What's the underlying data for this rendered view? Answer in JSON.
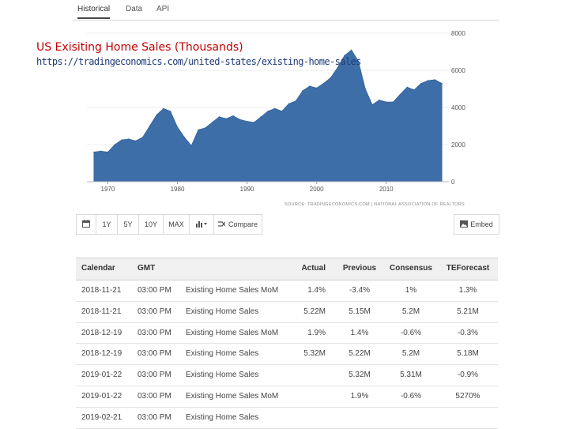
{
  "tabs": [
    "Historical",
    "Data",
    "API"
  ],
  "caption": {
    "title": "US Exisiting Home Sales (Thousands)",
    "url": "https://tradingeconomics.com/united-states/existing-home-sales"
  },
  "chart_data": {
    "type": "area",
    "color": "#3d6ea8",
    "x_ticks": [
      "1970",
      "1980",
      "1990",
      "2000",
      "2010"
    ],
    "y_ticks": [
      "0",
      "2000",
      "4000",
      "6000",
      "8000"
    ],
    "ylim": [
      0,
      8000
    ],
    "x": [
      1968,
      1969,
      1970,
      1971,
      1972,
      1973,
      1974,
      1975,
      1976,
      1977,
      1978,
      1979,
      1980,
      1981,
      1982,
      1983,
      1984,
      1985,
      1986,
      1987,
      1988,
      1989,
      1990,
      1991,
      1992,
      1993,
      1994,
      1995,
      1996,
      1997,
      1998,
      1999,
      2000,
      2001,
      2002,
      2003,
      2004,
      2005,
      2006,
      2007,
      2008,
      2009,
      2010,
      2011,
      2012,
      2013,
      2014,
      2015,
      2016,
      2017,
      2018
    ],
    "y": [
      1600,
      1650,
      1600,
      2000,
      2250,
      2300,
      2200,
      2400,
      3000,
      3600,
      3950,
      3800,
      2950,
      2400,
      1950,
      2800,
      2900,
      3200,
      3500,
      3400,
      3550,
      3350,
      3250,
      3200,
      3500,
      3800,
      3950,
      3800,
      4200,
      4350,
      4900,
      5150,
      5050,
      5300,
      5600,
      6150,
      6800,
      7100,
      6500,
      5000,
      4150,
      4400,
      4300,
      4300,
      4700,
      5100,
      4950,
      5300,
      5450,
      5500,
      5300
    ]
  },
  "source": "SOURCE: TRADINGECONOMICS.COM  |  NATIONAL ASSOCIATION OF REALTORS",
  "toolbar": {
    "buttons": [
      "1Y",
      "5Y",
      "10Y",
      "MAX"
    ],
    "compare": "Compare",
    "embed": "Embed"
  },
  "table": {
    "headers": [
      "Calendar",
      "GMT",
      "",
      "Actual",
      "Previous",
      "Consensus",
      "TEForecast"
    ],
    "rows": [
      [
        "2018-11-21",
        "03:00 PM",
        "Existing Home Sales MoM",
        "1.4%",
        "-3.4%",
        "1%",
        "1.3%"
      ],
      [
        "2018-11-21",
        "03:00 PM",
        "Existing Home Sales",
        "5.22M",
        "5.15M",
        "5.2M",
        "5.21M"
      ],
      [
        "2018-12-19",
        "03:00 PM",
        "Existing Home Sales MoM",
        "1.9%",
        "1.4%",
        "-0.6%",
        "-0.3%"
      ],
      [
        "2018-12-19",
        "03:00 PM",
        "Existing Home Sales",
        "5.32M",
        "5.22M",
        "5.2M",
        "5.18M"
      ],
      [
        "2019-01-22",
        "03:00 PM",
        "Existing Home Sales",
        "",
        "5.32M",
        "5.31M",
        "-0.9%"
      ],
      [
        "2019-01-22",
        "03:00 PM",
        "Existing Home Sales MoM",
        "",
        "1.9%",
        "-0.6%",
        "5270%"
      ],
      [
        "2019-02-21",
        "03:00 PM",
        "Existing Home Sales",
        "",
        "",
        "",
        ""
      ]
    ]
  }
}
